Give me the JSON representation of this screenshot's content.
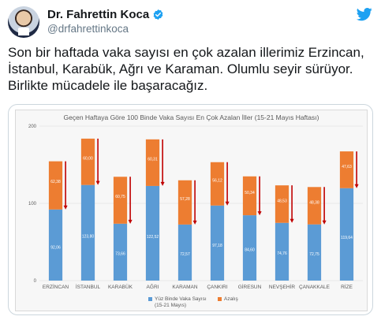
{
  "header": {
    "display_name": "Dr. Fahrettin Koca",
    "handle": "@drfahrettinkoca",
    "avatar_icon": "avatar-photo",
    "verified_icon": "verified-badge-icon",
    "brand_icon": "twitter-bird-icon",
    "brand_color": "#1da1f2"
  },
  "tweet": {
    "lines": [
      "Son bir haftada vaka sayısı en çok azalan illerimiz Erzincan,",
      "İstanbul, Karabük, Ağrı ve Karaman. Olumlu seyir sürüyor.",
      "Birlikte mücadele ile başaracağız."
    ]
  },
  "chart_data": {
    "type": "bar",
    "stacked": true,
    "title": "Geçen Haftaya Göre 100 Binde Vaka Sayısı En Çok Azalan İller (15-21 Mayıs Haftası)",
    "categories": [
      "ERZİNCAN",
      "İSTANBUL",
      "KARABÜK",
      "AĞRI",
      "KARAMAN",
      "ÇANKIRI",
      "GİRESUN",
      "NEVŞEHİR",
      "ÇANAKKALE",
      "RİZE"
    ],
    "series": [
      {
        "name": "Yüz Binde Vaka Sayısı (15-21 Mayıs)",
        "color": "#5b9bd5",
        "values": [
          92.06,
          123.8,
          73.66,
          122.52,
          72.57,
          97.18,
          84.6,
          74.76,
          72.75,
          119.64
        ],
        "labels": [
          "92,06",
          "123,80",
          "73,66",
          "122,52",
          "72,57",
          "97,18",
          "84,60",
          "74,76",
          "72,75",
          "119,64"
        ]
      },
      {
        "name": "Azalış",
        "color": "#ed7d31",
        "values": [
          62.38,
          60.0,
          60.75,
          60.31,
          57.28,
          56.12,
          50.34,
          48.53,
          48.38,
          47.63
        ],
        "labels": [
          "62,38",
          "60,00",
          "60,75",
          "60,31",
          "57,28",
          "56,12",
          "50,34",
          "48,53",
          "48,38",
          "47,63"
        ]
      }
    ],
    "ylim": [
      0,
      200
    ],
    "yticks": [
      "0",
      "100",
      "200"
    ],
    "grid": true,
    "legend_position": "bottom",
    "arrow_color": "#c00000"
  }
}
